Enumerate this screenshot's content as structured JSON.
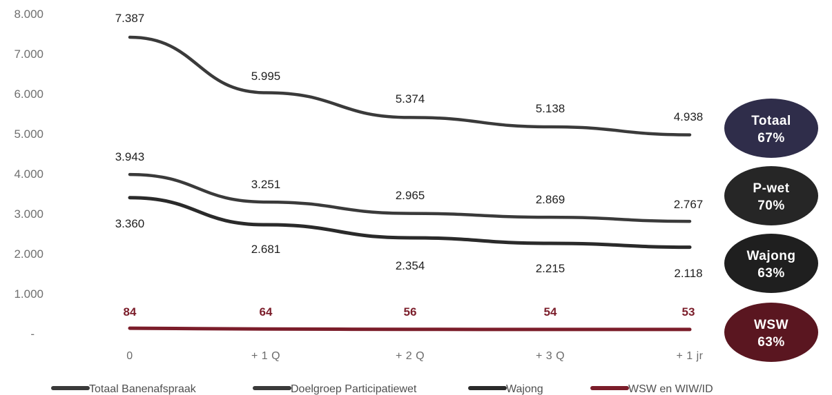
{
  "chart_data": {
    "type": "line",
    "categories": [
      "0",
      "+ 1 Q",
      "+ 2 Q",
      "+ 3 Q",
      "+ 1 jr"
    ],
    "y_ticks": [
      "8.000",
      "7.000",
      "6.000",
      "5.000",
      "4.000",
      "3.000",
      "2.000",
      "1.000",
      "-"
    ],
    "ylim": [
      0,
      8000
    ],
    "grid": false,
    "legend_position": "bottom",
    "series": [
      {
        "name": "Totaal Banenafspraak",
        "values": [
          7387,
          5995,
          5374,
          5138,
          4938
        ],
        "labels": [
          "7.387",
          "5.995",
          "5.374",
          "5.138",
          "4.938"
        ],
        "color": "#3a3a3a"
      },
      {
        "name": "Doelgroep Participatiewet",
        "values": [
          3943,
          3251,
          2965,
          2869,
          2767
        ],
        "labels": [
          "3.943",
          "3.251",
          "2.965",
          "2.869",
          "2.767"
        ],
        "color": "#3a3a3a"
      },
      {
        "name": "Wajong",
        "values": [
          3360,
          2681,
          2354,
          2215,
          2118
        ],
        "labels": [
          "3.360",
          "2.681",
          "2.354",
          "2.215",
          "2.118"
        ],
        "color": "#2a2a2a"
      },
      {
        "name": "WSW en WIW/ID",
        "values": [
          84,
          64,
          56,
          54,
          53
        ],
        "labels": [
          "84",
          "64",
          "56",
          "54",
          "53"
        ],
        "color": "#7b1d2a"
      }
    ],
    "badges": [
      {
        "line1": "Totaal",
        "line2": "67%",
        "color": "#2f2d4a"
      },
      {
        "line1": "P-wet",
        "line2": "70%",
        "color": "#262626"
      },
      {
        "line1": "Wajong",
        "line2": "63%",
        "color": "#1f1f1f"
      },
      {
        "line1": "WSW",
        "line2": "63%",
        "color": "#5a1620"
      }
    ]
  }
}
